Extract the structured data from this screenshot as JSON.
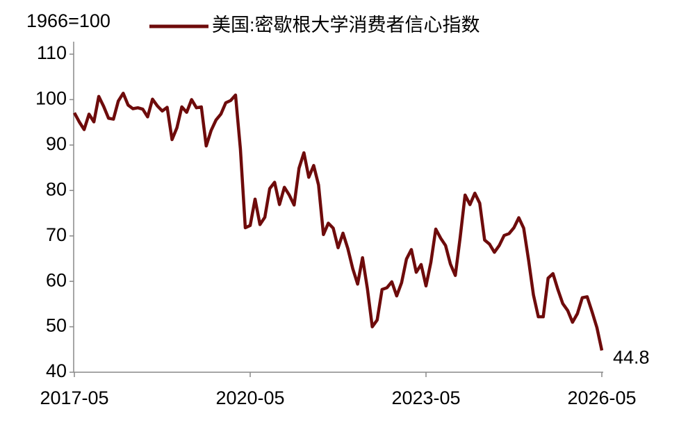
{
  "chart_data": {
    "type": "line",
    "annotation": "1966=100",
    "x": [
      "2017-05",
      "2017-06",
      "2017-07",
      "2017-08",
      "2017-09",
      "2017-10",
      "2017-11",
      "2017-12",
      "2018-01",
      "2018-02",
      "2018-03",
      "2018-04",
      "2018-05",
      "2018-06",
      "2018-07",
      "2018-08",
      "2018-09",
      "2018-10",
      "2018-11",
      "2018-12",
      "2019-01",
      "2019-02",
      "2019-03",
      "2019-04",
      "2019-05",
      "2019-06",
      "2019-07",
      "2019-08",
      "2019-09",
      "2019-10",
      "2019-11",
      "2019-12",
      "2020-01",
      "2020-02",
      "2020-03",
      "2020-04",
      "2020-05",
      "2020-06",
      "2020-07",
      "2020-08",
      "2020-09",
      "2020-10",
      "2020-11",
      "2020-12",
      "2021-01",
      "2021-02",
      "2021-03",
      "2021-04",
      "2021-05",
      "2021-06",
      "2021-07",
      "2021-08",
      "2021-09",
      "2021-10",
      "2021-11",
      "2021-12",
      "2022-01",
      "2022-02",
      "2022-03",
      "2022-04",
      "2022-05",
      "2022-06",
      "2022-07",
      "2022-08",
      "2022-09",
      "2022-10",
      "2022-11",
      "2022-12",
      "2023-01",
      "2023-02",
      "2023-03",
      "2023-04",
      "2023-05",
      "2023-06",
      "2023-07",
      "2023-08",
      "2023-09",
      "2023-10",
      "2023-11",
      "2023-12",
      "2024-01",
      "2024-02",
      "2024-03",
      "2024-04",
      "2024-05",
      "2024-06",
      "2024-07",
      "2024-08",
      "2024-09",
      "2024-10",
      "2024-11",
      "2024-12",
      "2025-01",
      "2025-02",
      "2025-03",
      "2025-04",
      "2025-05",
      "2025-06",
      "2025-07",
      "2025-08",
      "2025-09",
      "2025-10",
      "2025-11",
      "2025-12",
      "2026-01",
      "2026-02",
      "2026-03",
      "2026-04",
      "2026-05"
    ],
    "series": [
      {
        "name": "美国:密歇根大学消费者信心指数",
        "color": "#6e0b0b",
        "values": [
          97.1,
          95.1,
          93.4,
          96.8,
          95.1,
          100.7,
          98.5,
          95.9,
          95.7,
          99.7,
          101.4,
          98.8,
          98.0,
          98.2,
          97.9,
          96.2,
          100.1,
          98.6,
          97.5,
          98.3,
          91.2,
          93.8,
          98.4,
          97.2,
          100.0,
          98.2,
          98.4,
          89.8,
          93.2,
          95.5,
          96.8,
          99.3,
          99.8,
          101.0,
          89.1,
          71.8,
          72.3,
          78.1,
          72.5,
          74.1,
          80.4,
          81.8,
          76.9,
          80.7,
          79.0,
          76.8,
          84.9,
          88.3,
          82.9,
          85.5,
          81.2,
          70.3,
          72.8,
          71.7,
          67.4,
          70.6,
          67.2,
          62.8,
          59.4,
          65.2,
          58.4,
          50.0,
          51.5,
          58.2,
          58.6,
          59.9,
          56.8,
          59.7,
          64.9,
          67.0,
          62.0,
          63.7,
          59.0,
          64.2,
          71.5,
          69.5,
          67.9,
          63.8,
          61.3,
          69.7,
          79.0,
          76.9,
          79.4,
          77.2,
          69.1,
          68.2,
          66.4,
          67.9,
          70.1,
          70.5,
          71.8,
          74.0,
          71.7,
          64.7,
          57.0,
          52.2,
          52.2,
          60.7,
          61.7,
          58.2,
          55.1,
          53.6,
          51.0,
          52.9,
          56.4,
          56.6,
          53.3,
          49.8,
          44.8
        ]
      }
    ],
    "xlim": [
      "2017-05",
      "2026-05"
    ],
    "xticks": [
      "2017-05",
      "2020-05",
      "2023-05",
      "2026-05"
    ],
    "ylim": [
      40,
      110
    ],
    "yticks": [
      40,
      50,
      60,
      70,
      80,
      90,
      100,
      110
    ],
    "grid": false
  }
}
